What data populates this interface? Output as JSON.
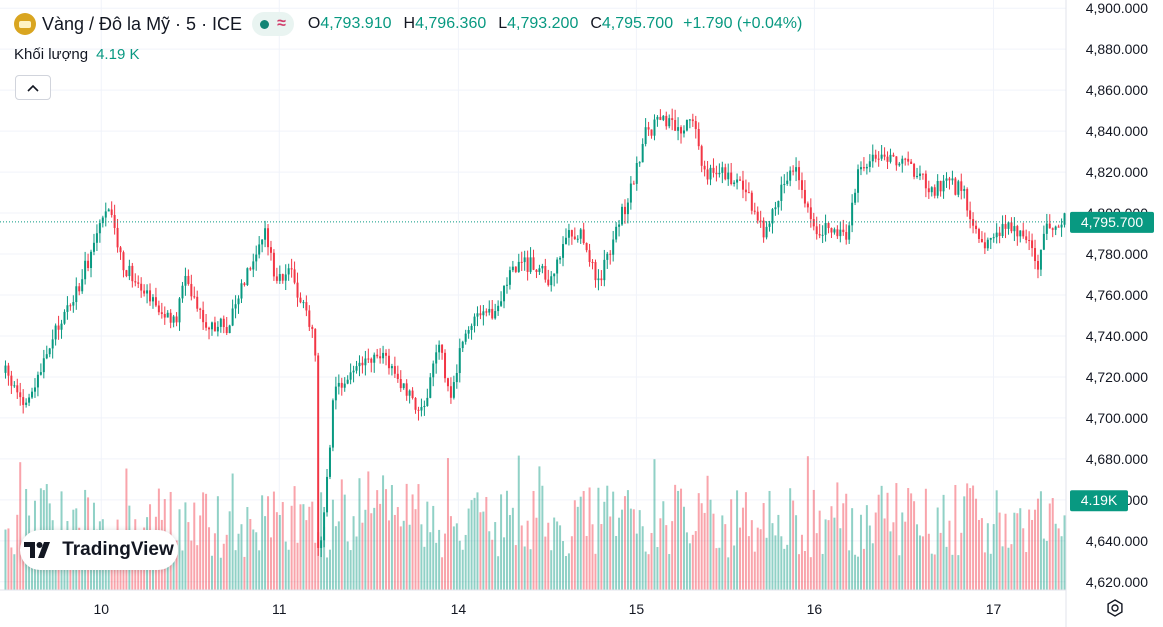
{
  "header": {
    "title": "Vàng / Đô la Mỹ · 5 · ICE",
    "approx_symbol": "≈",
    "ohlc": [
      {
        "key": "O",
        "value": "4,793.910"
      },
      {
        "key": "H",
        "value": "4,796.360"
      },
      {
        "key": "L",
        "value": "4,793.200"
      },
      {
        "key": "C",
        "value": "4,795.700"
      }
    ],
    "change": "+1.790 (+0.04%)"
  },
  "volume_legend": {
    "label": "Khối lượng",
    "value": "4.19 K"
  },
  "collapse_label": "^",
  "logo_text": "TradingView",
  "colors": {
    "up": "#089981",
    "down": "#f23645",
    "price_line": "#089981",
    "grid": "#f0f3fa"
  },
  "chart_data": {
    "type": "candlestick",
    "title": "Vàng / Đô la Mỹ · 5 · ICE",
    "ylim": [
      4616,
      4904
    ],
    "y_ticks": [
      "4,620.000",
      "4,640.000",
      "4,660.000",
      "4,680.000",
      "4,700.000",
      "4,720.000",
      "4,740.000",
      "4,760.000",
      "4,780.000",
      "4,800.000",
      "4,820.000",
      "4,840.000",
      "4,860.000",
      "4,880.000",
      "4,900.000"
    ],
    "y_tick_values": [
      4620,
      4640,
      4660,
      4680,
      4700,
      4720,
      4740,
      4760,
      4780,
      4800,
      4820,
      4840,
      4860,
      4880,
      4900
    ],
    "x_ticks": [
      "10",
      "11",
      "14",
      "15",
      "16",
      "17"
    ],
    "x_tick_positions": [
      0.095,
      0.262,
      0.43,
      0.597,
      0.764,
      0.932
    ],
    "price_label": "4,795.700",
    "price_value": 4795.7,
    "volume_label": "4.19K",
    "price_path": [
      [
        0.0,
        4722
      ],
      [
        0.02,
        4705
      ],
      [
        0.05,
        4745
      ],
      [
        0.07,
        4765
      ],
      [
        0.09,
        4795
      ],
      [
        0.1,
        4800
      ],
      [
        0.11,
        4775
      ],
      [
        0.13,
        4765
      ],
      [
        0.15,
        4750
      ],
      [
        0.16,
        4745
      ],
      [
        0.17,
        4770
      ],
      [
        0.19,
        4745
      ],
      [
        0.21,
        4745
      ],
      [
        0.23,
        4775
      ],
      [
        0.245,
        4790
      ],
      [
        0.255,
        4770
      ],
      [
        0.27,
        4770
      ],
      [
        0.285,
        4750
      ],
      [
        0.292,
        4742
      ],
      [
        0.293,
        4720
      ],
      [
        0.294,
        4630
      ],
      [
        0.3,
        4650
      ],
      [
        0.31,
        4710
      ],
      [
        0.33,
        4725
      ],
      [
        0.36,
        4730
      ],
      [
        0.38,
        4710
      ],
      [
        0.395,
        4705
      ],
      [
        0.41,
        4735
      ],
      [
        0.42,
        4710
      ],
      [
        0.435,
        4745
      ],
      [
        0.46,
        4750
      ],
      [
        0.48,
        4775
      ],
      [
        0.5,
        4775
      ],
      [
        0.515,
        4765
      ],
      [
        0.53,
        4790
      ],
      [
        0.545,
        4790
      ],
      [
        0.56,
        4765
      ],
      [
        0.575,
        4790
      ],
      [
        0.59,
        4810
      ],
      [
        0.605,
        4840
      ],
      [
        0.62,
        4845
      ],
      [
        0.635,
        4840
      ],
      [
        0.65,
        4845
      ],
      [
        0.66,
        4820
      ],
      [
        0.68,
        4820
      ],
      [
        0.7,
        4810
      ],
      [
        0.715,
        4790
      ],
      [
        0.73,
        4810
      ],
      [
        0.745,
        4825
      ],
      [
        0.76,
        4795
      ],
      [
        0.78,
        4790
      ],
      [
        0.795,
        4790
      ],
      [
        0.805,
        4820
      ],
      [
        0.82,
        4830
      ],
      [
        0.84,
        4825
      ],
      [
        0.86,
        4820
      ],
      [
        0.875,
        4810
      ],
      [
        0.89,
        4815
      ],
      [
        0.905,
        4810
      ],
      [
        0.915,
        4790
      ],
      [
        0.93,
        4785
      ],
      [
        0.945,
        4795
      ],
      [
        0.96,
        4790
      ],
      [
        0.975,
        4775
      ],
      [
        0.985,
        4795
      ],
      [
        1.0,
        4796
      ]
    ],
    "volume_range": [
      0,
      7.0
    ],
    "volume_label_value": 4.19
  }
}
